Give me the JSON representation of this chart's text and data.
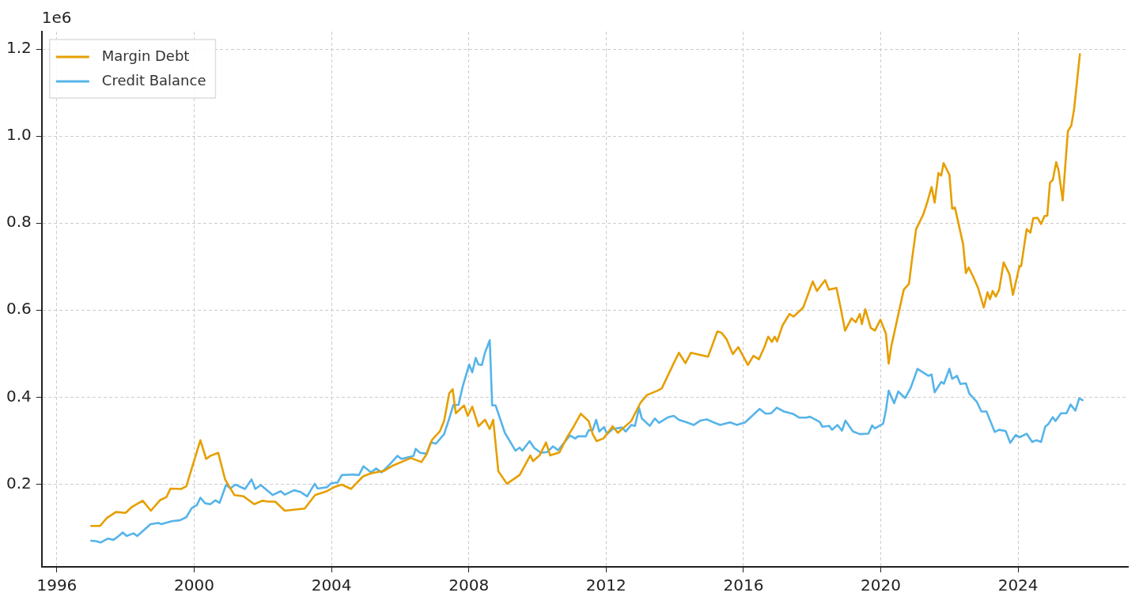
{
  "chart_data": {
    "type": "line",
    "annotations": [
      "1e6"
    ],
    "xlim": [
      1995.56,
      2027.2
    ],
    "xticks": [
      1996,
      2000,
      2004,
      2008,
      2012,
      2016,
      2020,
      2024
    ],
    "ylim": [
      0.01,
      1.24
    ],
    "yticks": [
      {
        "value": 0.2,
        "label": "0.2"
      },
      {
        "value": 0.4,
        "label": "0.4"
      },
      {
        "value": 0.6,
        "label": "0.6"
      },
      {
        "value": 0.8,
        "label": "0.8"
      },
      {
        "value": 1,
        "label": "1.0"
      },
      {
        "value": 1.2,
        "label": "1.2"
      }
    ],
    "grid": true,
    "legend": "top left",
    "line_style": "solid",
    "series": [
      {
        "name": "Margin Debt",
        "color": "#e69f00",
        "x": [
          1997.0,
          1997.26,
          1997.45,
          1997.72,
          1998.0,
          1998.19,
          1998.5,
          1998.74,
          1999.0,
          1999.19,
          1999.31,
          1999.62,
          1999.77,
          2000.18,
          2000.35,
          2000.47,
          2000.7,
          2000.9,
          2001.17,
          2001.44,
          2001.75,
          2001.98,
          2002.17,
          2002.36,
          2002.64,
          2003.22,
          2003.52,
          2003.87,
          2004.07,
          2004.3,
          2004.57,
          2004.92,
          2005.15,
          2005.54,
          2005.77,
          2006.31,
          2006.62,
          2006.77,
          2006.93,
          2007.16,
          2007.28,
          2007.43,
          2007.53,
          2007.62,
          2007.86,
          2007.97,
          2008.1,
          2008.28,
          2008.47,
          2008.61,
          2008.71,
          2008.86,
          2009.11,
          2009.48,
          2009.79,
          2009.87,
          2010.06,
          2010.25,
          2010.37,
          2010.64,
          2010.87,
          2011.06,
          2011.26,
          2011.49,
          2011.61,
          2011.72,
          2011.92,
          2012.19,
          2012.34,
          2012.73,
          2013.0,
          2013.19,
          2013.5,
          2013.62,
          2013.97,
          2014.12,
          2014.31,
          2014.47,
          2014.97,
          2015.24,
          2015.36,
          2015.51,
          2015.69,
          2015.85,
          2016.13,
          2016.29,
          2016.45,
          2016.61,
          2016.72,
          2016.83,
          2016.91,
          2016.98,
          2017.14,
          2017.34,
          2017.46,
          2017.74,
          2018.02,
          2018.14,
          2018.38,
          2018.49,
          2018.71,
          2018.83,
          2018.96,
          2019.15,
          2019.27,
          2019.39,
          2019.45,
          2019.55,
          2019.71,
          2019.83,
          2019.99,
          2020.15,
          2020.23,
          2020.31,
          2020.67,
          2020.82,
          2020.91,
          2021.03,
          2021.24,
          2021.36,
          2021.48,
          2021.57,
          2021.68,
          2021.76,
          2021.83,
          2022.0,
          2022.08,
          2022.16,
          2022.4,
          2022.48,
          2022.56,
          2022.68,
          2022.84,
          2023.0,
          2023.11,
          2023.18,
          2023.26,
          2023.35,
          2023.45,
          2023.58,
          2023.75,
          2023.85,
          2024.04,
          2024.09,
          2024.25,
          2024.36,
          2024.44,
          2024.57,
          2024.67,
          2024.77,
          2024.85,
          2024.93,
          2025.01,
          2025.11,
          2025.18,
          2025.3,
          2025.45,
          2025.55,
          2025.63,
          2025.8
        ],
        "values": [
          0.104,
          0.104,
          0.122,
          0.136,
          0.134,
          0.148,
          0.162,
          0.139,
          0.163,
          0.17,
          0.19,
          0.189,
          0.195,
          0.301,
          0.258,
          0.265,
          0.272,
          0.211,
          0.175,
          0.172,
          0.154,
          0.162,
          0.16,
          0.16,
          0.139,
          0.144,
          0.175,
          0.184,
          0.193,
          0.199,
          0.189,
          0.218,
          0.225,
          0.231,
          0.242,
          0.26,
          0.251,
          0.269,
          0.302,
          0.322,
          0.345,
          0.409,
          0.418,
          0.363,
          0.381,
          0.357,
          0.378,
          0.333,
          0.348,
          0.327,
          0.348,
          0.23,
          0.201,
          0.221,
          0.266,
          0.253,
          0.266,
          0.296,
          0.266,
          0.273,
          0.309,
          0.333,
          0.362,
          0.345,
          0.315,
          0.299,
          0.305,
          0.333,
          0.318,
          0.345,
          0.387,
          0.405,
          0.415,
          0.42,
          0.478,
          0.502,
          0.478,
          0.502,
          0.493,
          0.551,
          0.548,
          0.533,
          0.499,
          0.515,
          0.474,
          0.495,
          0.487,
          0.515,
          0.539,
          0.527,
          0.539,
          0.528,
          0.565,
          0.591,
          0.585,
          0.606,
          0.666,
          0.644,
          0.669,
          0.647,
          0.651,
          0.606,
          0.553,
          0.581,
          0.572,
          0.591,
          0.568,
          0.602,
          0.559,
          0.553,
          0.578,
          0.546,
          0.477,
          0.518,
          0.647,
          0.66,
          0.716,
          0.786,
          0.82,
          0.849,
          0.883,
          0.847,
          0.915,
          0.909,
          0.938,
          0.911,
          0.833,
          0.836,
          0.751,
          0.685,
          0.698,
          0.679,
          0.65,
          0.606,
          0.641,
          0.625,
          0.644,
          0.631,
          0.647,
          0.71,
          0.682,
          0.635,
          0.701,
          0.701,
          0.786,
          0.778,
          0.811,
          0.812,
          0.798,
          0.816,
          0.817,
          0.893,
          0.899,
          0.94,
          0.921,
          0.852,
          1.011,
          1.024,
          1.06,
          1.188
        ]
      },
      {
        "name": "Credit Balance",
        "color": "#56b4e9",
        "x": [
          1997.0,
          1997.14,
          1997.28,
          1997.49,
          1997.65,
          1997.8,
          1997.92,
          1998.03,
          1998.23,
          1998.34,
          1998.73,
          1998.96,
          1999.04,
          1999.35,
          1999.58,
          1999.77,
          1999.93,
          2000.08,
          2000.18,
          2000.32,
          2000.47,
          2000.62,
          2000.74,
          2000.93,
          2001.05,
          2001.2,
          2001.48,
          2001.67,
          2001.78,
          2001.94,
          2002.29,
          2002.52,
          2002.64,
          2002.91,
          2003.1,
          2003.29,
          2003.51,
          2003.6,
          2003.87,
          2003.99,
          2004.18,
          2004.3,
          2004.65,
          2004.8,
          2004.93,
          2005.15,
          2005.3,
          2005.46,
          2005.69,
          2005.92,
          2006.04,
          2006.39,
          2006.45,
          2006.58,
          2006.77,
          2006.89,
          2007.04,
          2007.28,
          2007.43,
          2007.55,
          2007.7,
          2007.82,
          2008.01,
          2008.1,
          2008.2,
          2008.28,
          2008.38,
          2008.47,
          2008.61,
          2008.68,
          2008.78,
          2009.05,
          2009.36,
          2009.48,
          2009.56,
          2009.77,
          2009.91,
          2010.1,
          2010.29,
          2010.45,
          2010.6,
          2010.95,
          2011.1,
          2011.18,
          2011.41,
          2011.49,
          2011.61,
          2011.71,
          2011.8,
          2011.94,
          2012.03,
          2012.19,
          2012.46,
          2012.57,
          2012.73,
          2012.84,
          2012.96,
          2013.04,
          2013.27,
          2013.42,
          2013.54,
          2013.81,
          2013.97,
          2014.12,
          2014.35,
          2014.55,
          2014.74,
          2014.93,
          2015.13,
          2015.32,
          2015.61,
          2015.81,
          2016.05,
          2016.31,
          2016.47,
          2016.65,
          2016.81,
          2016.97,
          2017.18,
          2017.46,
          2017.62,
          2017.82,
          2017.94,
          2018.22,
          2018.3,
          2018.5,
          2018.58,
          2018.74,
          2018.87,
          2018.97,
          2019.19,
          2019.39,
          2019.64,
          2019.75,
          2019.83,
          2020.07,
          2020.15,
          2020.23,
          2020.39,
          2020.51,
          2020.71,
          2020.87,
          2021.07,
          2021.39,
          2021.48,
          2021.57,
          2021.76,
          2021.84,
          2022.0,
          2022.08,
          2022.22,
          2022.32,
          2022.48,
          2022.58,
          2022.8,
          2022.93,
          2023.08,
          2023.32,
          2023.45,
          2023.64,
          2023.77,
          2023.93,
          2024.05,
          2024.25,
          2024.41,
          2024.53,
          2024.67,
          2024.79,
          2024.89,
          2025.01,
          2025.09,
          2025.25,
          2025.41,
          2025.53,
          2025.67,
          2025.78,
          2025.88
        ],
        "values": [
          0.07,
          0.069,
          0.066,
          0.075,
          0.072,
          0.081,
          0.089,
          0.081,
          0.087,
          0.081,
          0.108,
          0.111,
          0.108,
          0.115,
          0.117,
          0.124,
          0.145,
          0.152,
          0.169,
          0.156,
          0.154,
          0.163,
          0.157,
          0.199,
          0.19,
          0.199,
          0.189,
          0.211,
          0.189,
          0.198,
          0.175,
          0.184,
          0.176,
          0.186,
          0.182,
          0.172,
          0.201,
          0.19,
          0.193,
          0.202,
          0.204,
          0.221,
          0.222,
          0.221,
          0.241,
          0.227,
          0.236,
          0.227,
          0.245,
          0.265,
          0.258,
          0.265,
          0.281,
          0.272,
          0.27,
          0.296,
          0.293,
          0.315,
          0.351,
          0.382,
          0.382,
          0.424,
          0.475,
          0.457,
          0.49,
          0.475,
          0.474,
          0.502,
          0.531,
          0.381,
          0.381,
          0.318,
          0.277,
          0.284,
          0.277,
          0.299,
          0.283,
          0.272,
          0.274,
          0.287,
          0.278,
          0.312,
          0.305,
          0.31,
          0.31,
          0.324,
          0.324,
          0.348,
          0.321,
          0.331,
          0.315,
          0.327,
          0.33,
          0.321,
          0.336,
          0.334,
          0.375,
          0.351,
          0.334,
          0.351,
          0.341,
          0.354,
          0.357,
          0.348,
          0.342,
          0.336,
          0.346,
          0.349,
          0.342,
          0.336,
          0.342,
          0.336,
          0.342,
          0.361,
          0.373,
          0.362,
          0.363,
          0.376,
          0.367,
          0.361,
          0.353,
          0.353,
          0.355,
          0.343,
          0.332,
          0.334,
          0.325,
          0.336,
          0.323,
          0.346,
          0.321,
          0.315,
          0.316,
          0.335,
          0.328,
          0.339,
          0.37,
          0.415,
          0.386,
          0.413,
          0.398,
          0.421,
          0.465,
          0.449,
          0.452,
          0.411,
          0.435,
          0.431,
          0.465,
          0.442,
          0.449,
          0.43,
          0.432,
          0.408,
          0.389,
          0.367,
          0.367,
          0.32,
          0.325,
          0.322,
          0.295,
          0.313,
          0.308,
          0.316,
          0.297,
          0.301,
          0.297,
          0.332,
          0.339,
          0.354,
          0.345,
          0.363,
          0.363,
          0.383,
          0.369,
          0.397,
          0.393
        ]
      }
    ]
  }
}
